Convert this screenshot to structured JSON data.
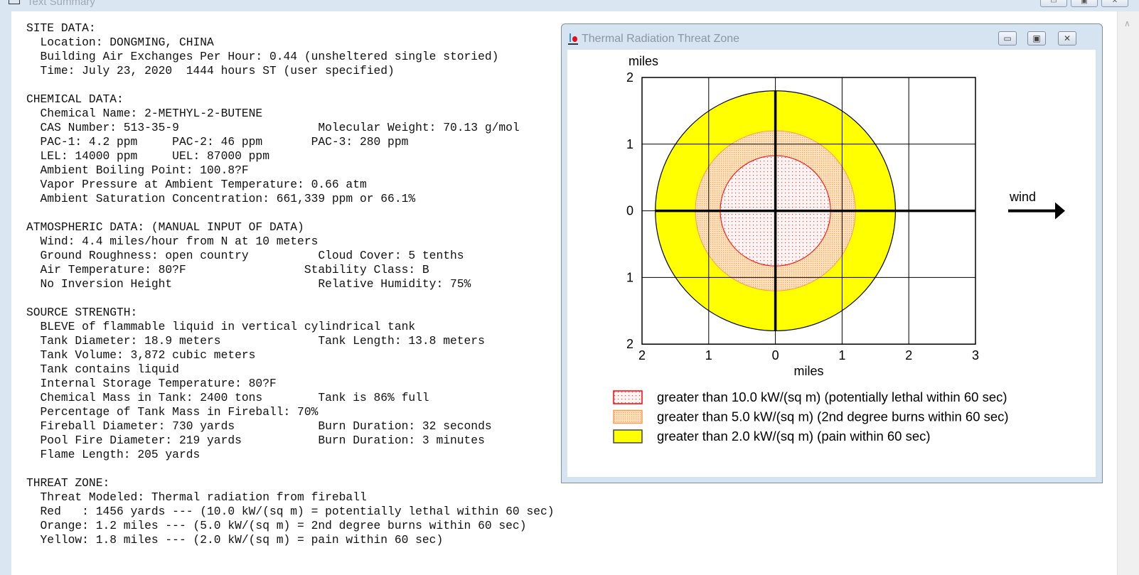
{
  "outer_window": {
    "title": "Text Summary",
    "buttons": {
      "minimize": "▭",
      "maximize": "▣",
      "close": "✕"
    },
    "scroll_up": "∧"
  },
  "report": {
    "lines": [
      "SITE DATA:",
      "  Location: DONGMING, CHINA",
      "  Building Air Exchanges Per Hour: 0.44 (unsheltered single storied)",
      "  Time: July 23, 2020  1444 hours ST (user specified)",
      "",
      "CHEMICAL DATA:",
      "  Chemical Name: 2-METHYL-2-BUTENE",
      "  CAS Number: 513-35-9                    Molecular Weight: 70.13 g/mol",
      "  PAC-1: 4.2 ppm     PAC-2: 46 ppm       PAC-3: 280 ppm",
      "  LEL: 14000 ppm     UEL: 87000 ppm",
      "  Ambient Boiling Point: 100.8?F",
      "  Vapor Pressure at Ambient Temperature: 0.66 atm",
      "  Ambient Saturation Concentration: 661,339 ppm or 66.1%",
      "",
      "ATMOSPHERIC DATA: (MANUAL INPUT OF DATA)",
      "  Wind: 4.4 miles/hour from N at 10 meters",
      "  Ground Roughness: open country          Cloud Cover: 5 tenths",
      "  Air Temperature: 80?F                 Stability Class: B",
      "  No Inversion Height                     Relative Humidity: 75%",
      "",
      "SOURCE STRENGTH:",
      "  BLEVE of flammable liquid in vertical cylindrical tank",
      "  Tank Diameter: 18.9 meters              Tank Length: 13.8 meters",
      "  Tank Volume: 3,872 cubic meters",
      "  Tank contains liquid",
      "  Internal Storage Temperature: 80?F",
      "  Chemical Mass in Tank: 2400 tons        Tank is 86% full",
      "  Percentage of Tank Mass in Fireball: 70%",
      "  Fireball Diameter: 730 yards            Burn Duration: 32 seconds",
      "  Pool Fire Diameter: 219 yards           Burn Duration: 3 minutes",
      "  Flame Length: 205 yards",
      "",
      "THREAT ZONE:",
      "  Threat Modeled: Thermal radiation from fireball",
      "  Red   : 1456 yards --- (10.0 kW/(sq m) = potentially lethal within 60 sec)",
      "  Orange: 1.2 miles --- (5.0 kW/(sq m) = 2nd degree burns within 60 sec)",
      "  Yellow: 1.8 miles --- (2.0 kW/(sq m) = pain within 60 sec)"
    ]
  },
  "threat_window": {
    "title": "Thermal Radiation Threat Zone",
    "buttons": {
      "minimize": "▭",
      "maximize": "▣",
      "close": "✕"
    }
  },
  "chart_data": {
    "type": "threat-zone-plot",
    "xlabel": "miles",
    "ylabel": "miles",
    "xlim": [
      -2,
      3
    ],
    "ylim": [
      -2,
      2
    ],
    "x_ticks": [
      "2",
      "1",
      "0",
      "1",
      "2",
      "3"
    ],
    "y_ticks": [
      "2",
      "1",
      "0",
      "1",
      "2"
    ],
    "grid": true,
    "wind_label": "wind",
    "wind_direction": "right",
    "zones": [
      {
        "name": "Yellow",
        "radius_miles": 1.8,
        "fill": "#ffff00",
        "stroke": "#000000",
        "legend": "greater than 2.0 kW/(sq m) (pain within 60 sec)"
      },
      {
        "name": "Orange",
        "radius_miles": 1.2,
        "fill": "#ffd6a6",
        "stroke": "#ff9955",
        "legend": "greater than 5.0 kW/(sq m) (2nd degree burns within 60 sec)"
      },
      {
        "name": "Red",
        "radius_miles": 0.827,
        "fill": "#fff0f0",
        "stroke": "#ff0000",
        "legend": "greater than 10.0 kW/(sq m) (potentially lethal within 60 sec)"
      }
    ],
    "legend_order": [
      "Red",
      "Orange",
      "Yellow"
    ]
  }
}
